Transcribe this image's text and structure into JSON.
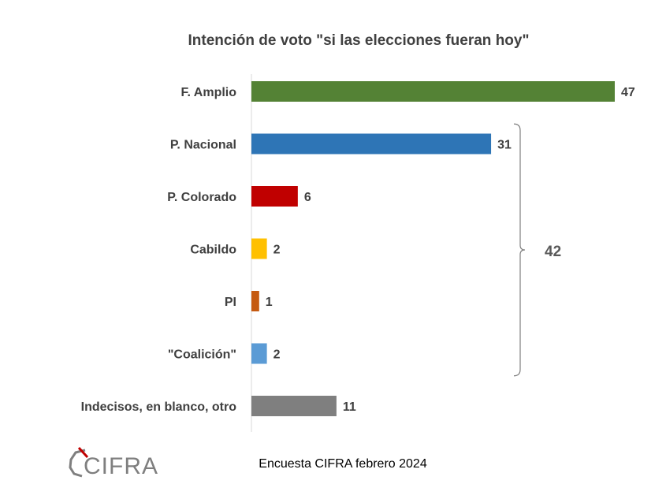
{
  "chart_data": {
    "type": "bar",
    "orientation": "horizontal",
    "title": "Intención de voto \"si las elecciones fueran hoy\"",
    "categories": [
      "F. Amplio",
      "P. Nacional",
      "P. Colorado",
      "Cabildo",
      "PI",
      "\"Coalición\"",
      "Indecisos, en blanco, otro"
    ],
    "values": [
      47,
      31,
      6,
      2,
      1,
      2,
      11
    ],
    "colors": [
      "#548235",
      "#2e75b6",
      "#c00000",
      "#ffc000",
      "#c55a11",
      "#5b9bd5",
      "#7f7f7f"
    ],
    "xlim": [
      0,
      50
    ],
    "grid": false,
    "annotations": [
      {
        "type": "bracket",
        "from_category": "P. Nacional",
        "to_category": "\"Coalición\"",
        "label": "42"
      }
    ]
  },
  "footer": {
    "source": "Encuesta CIFRA febrero  2024"
  },
  "logo": {
    "text": "CIFRA"
  }
}
